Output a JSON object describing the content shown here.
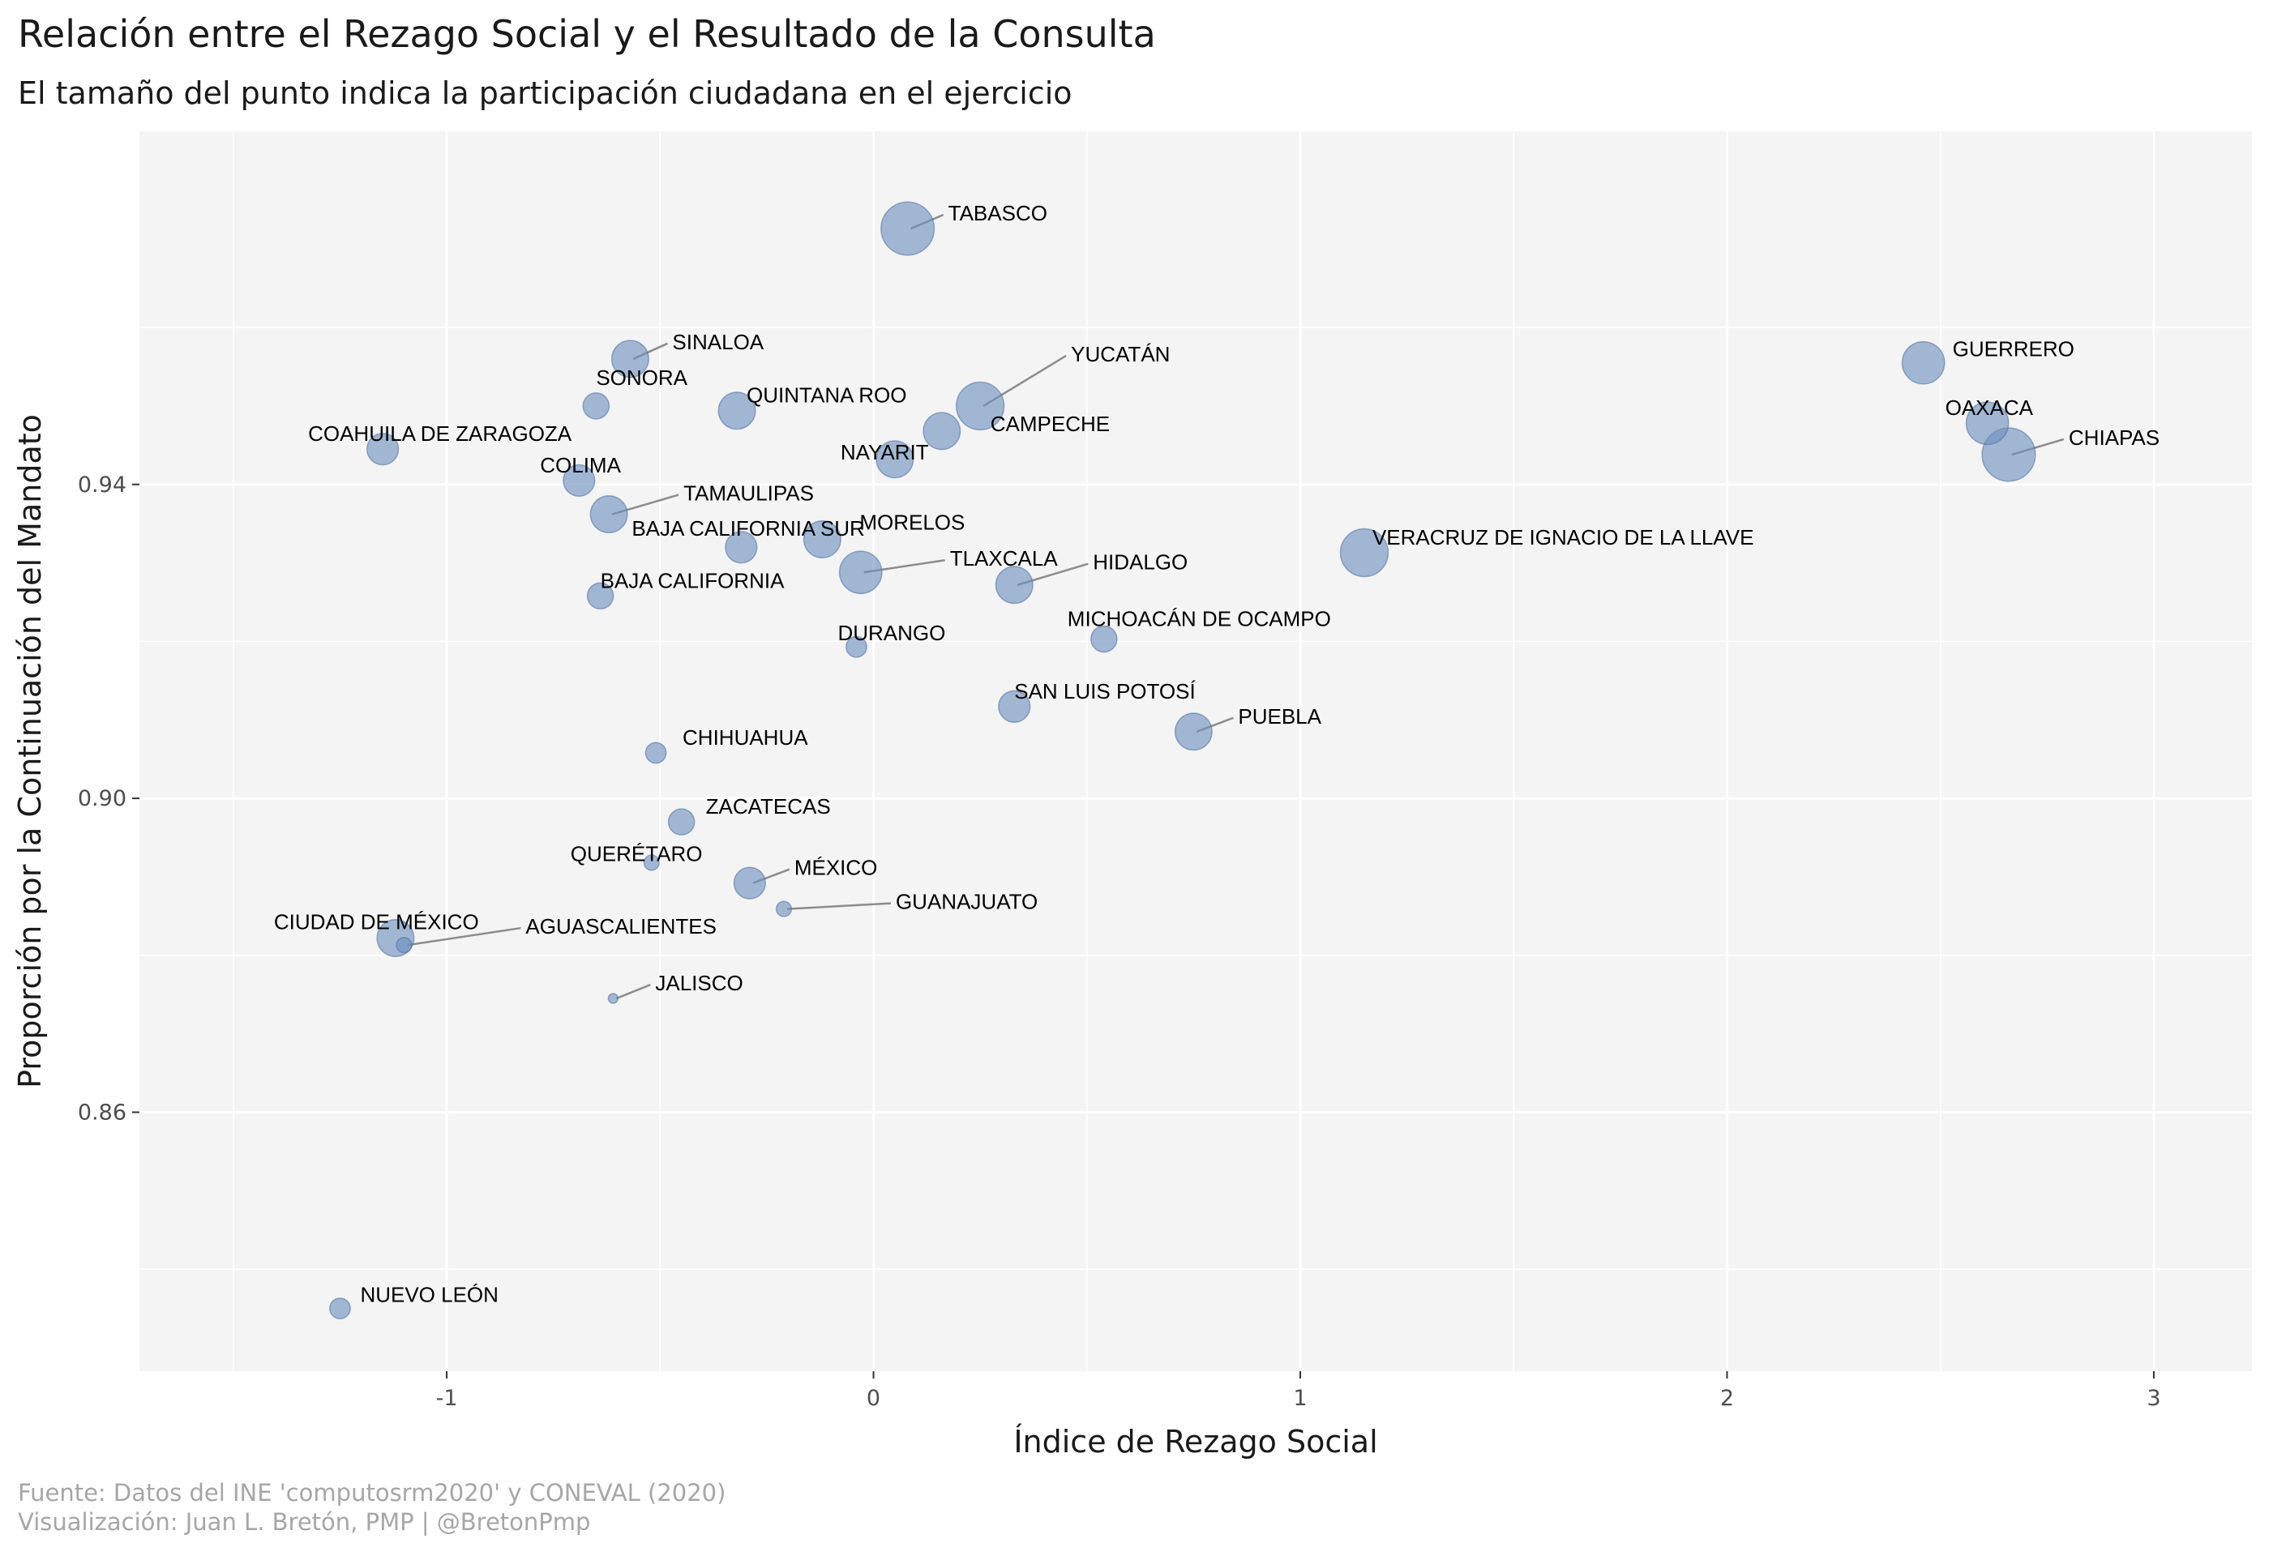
{
  "chart_data": {
    "type": "scatter",
    "title": "Relación entre el Rezago Social y el Resultado de la Consulta",
    "subtitle": "El tamaño del punto indica la participación ciudadana en el ejercicio",
    "xlabel": "Índice de Rezago Social",
    "ylabel": "Proporción por la Continuación del Mandato",
    "caption_lines": [
      "Fuente: Datos del INE 'computosrm2020' y CONEVAL (2020)",
      "Visualización: Juan L. Bretón, PMP | @BretonPmp"
    ],
    "xlim": [
      -1.72,
      3.23
    ],
    "ylim": [
      0.827,
      0.985
    ],
    "x_ticks": [
      -1,
      0,
      1,
      2,
      3
    ],
    "x_tick_labels": [
      "-1",
      "0",
      "1",
      "2",
      "3"
    ],
    "y_ticks": [
      0.86,
      0.9,
      0.94
    ],
    "y_tick_labels": [
      "0.86",
      "0.90",
      "0.94"
    ],
    "grid": true,
    "colors": {
      "panel": "#f4f4f4",
      "grid": "#ffffff",
      "point": "#6d8fbf",
      "point_stroke": "#4f6f9f",
      "leader": "#8c8c8c"
    },
    "points": [
      {
        "label": "TABASCO",
        "x": 0.08,
        "y": 0.9726,
        "size": 8
      },
      {
        "label": "SINALOA",
        "x": -0.57,
        "y": 0.956,
        "size": 5
      },
      {
        "label": "YUCATÁN",
        "x": 0.25,
        "y": 0.95,
        "size": 7
      },
      {
        "label": "SONORA",
        "x": -0.65,
        "y": 0.95,
        "size": 3
      },
      {
        "label": "QUINTANA ROO",
        "x": -0.32,
        "y": 0.9494,
        "size": 5
      },
      {
        "label": "GUERRERO",
        "x": 2.46,
        "y": 0.9555,
        "size": 6
      },
      {
        "label": "CAMPECHE",
        "x": 0.16,
        "y": 0.9468,
        "size": 5
      },
      {
        "label": "OAXACA",
        "x": 2.61,
        "y": 0.9478,
        "size": 6
      },
      {
        "label": "CHIAPAS",
        "x": 2.66,
        "y": 0.9438,
        "size": 8
      },
      {
        "label": "COAHUILA DE ZARAGOZA",
        "x": -1.15,
        "y": 0.9445,
        "size": 4
      },
      {
        "label": "NAYARIT",
        "x": 0.05,
        "y": 0.9432,
        "size": 5
      },
      {
        "label": "COLIMA",
        "x": -0.69,
        "y": 0.9405,
        "size": 4
      },
      {
        "label": "TAMAULIPAS",
        "x": -0.62,
        "y": 0.9362,
        "size": 5
      },
      {
        "label": "MORELOS",
        "x": -0.12,
        "y": 0.933,
        "size": 5
      },
      {
        "label": "BAJA CALIFORNIA SUR",
        "x": -0.31,
        "y": 0.932,
        "size": 4
      },
      {
        "label": "VERACRUZ DE IGNACIO DE LA LLAVE",
        "x": 1.15,
        "y": 0.9313,
        "size": 7
      },
      {
        "label": "TLAXCALA",
        "x": -0.03,
        "y": 0.9288,
        "size": 6
      },
      {
        "label": "HIDALGO",
        "x": 0.33,
        "y": 0.9272,
        "size": 5
      },
      {
        "label": "BAJA CALIFORNIA",
        "x": -0.64,
        "y": 0.9258,
        "size": 3
      },
      {
        "label": "MICHOACÁN DE OCAMPO",
        "x": 0.54,
        "y": 0.9203,
        "size": 3
      },
      {
        "label": "DURANGO",
        "x": -0.04,
        "y": 0.9193,
        "size": 2
      },
      {
        "label": "SAN LUIS POTOSÍ",
        "x": 0.33,
        "y": 0.9117,
        "size": 4
      },
      {
        "label": "PUEBLA",
        "x": 0.75,
        "y": 0.9085,
        "size": 5
      },
      {
        "label": "CHIHUAHUA",
        "x": -0.51,
        "y": 0.9058,
        "size": 2
      },
      {
        "label": "ZACATECAS",
        "x": -0.45,
        "y": 0.897,
        "size": 3
      },
      {
        "label": "QUERÉTARO",
        "x": -0.52,
        "y": 0.8918,
        "size": 1
      },
      {
        "label": "MÉXICO",
        "x": -0.29,
        "y": 0.8892,
        "size": 4
      },
      {
        "label": "GUANAJUATO",
        "x": -0.21,
        "y": 0.8859,
        "size": 1
      },
      {
        "label": "CIUDAD DE MÉXICO",
        "x": -1.12,
        "y": 0.8822,
        "size": 5
      },
      {
        "label": "AGUASCALIENTES",
        "x": -1.1,
        "y": 0.8813,
        "size": 1
      },
      {
        "label": "JALISCO",
        "x": -0.61,
        "y": 0.8745,
        "size": 0
      },
      {
        "label": "NUEVO LEÓN",
        "x": -1.25,
        "y": 0.835,
        "size": 2
      }
    ]
  }
}
